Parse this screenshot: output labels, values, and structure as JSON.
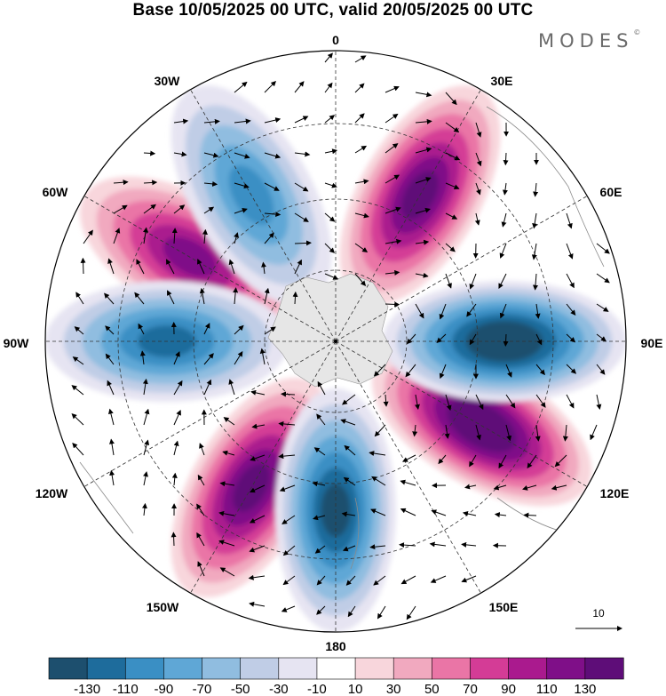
{
  "title": "Base 10/05/2025 00 UTC, valid 20/05/2025 00 UTC",
  "brand": "MODES",
  "brand_mark": "©",
  "lon_labels": [
    {
      "id": "lon-0",
      "text": "0"
    },
    {
      "id": "lon-30e",
      "text": "30E"
    },
    {
      "id": "lon-60e",
      "text": "60E"
    },
    {
      "id": "lon-90e",
      "text": "90E"
    },
    {
      "id": "lon-120e",
      "text": "120E"
    },
    {
      "id": "lon-150e",
      "text": "150E"
    },
    {
      "id": "lon-180",
      "text": "180"
    },
    {
      "id": "lon-150w",
      "text": "150W"
    },
    {
      "id": "lon-120w",
      "text": "120W"
    },
    {
      "id": "lon-90w",
      "text": "90W"
    },
    {
      "id": "lon-60w",
      "text": "60W"
    },
    {
      "id": "lon-30w",
      "text": "30W"
    }
  ],
  "vector_reference": "10",
  "colorbar": {
    "colors": [
      "#1d4f6e",
      "#1e6c9c",
      "#3a8fc4",
      "#5fa7d6",
      "#90bde0",
      "#c0cde6",
      "#e6e4f2",
      "#ffffff",
      "#f8d6dc",
      "#f1a9bf",
      "#ea75a6",
      "#d43c96",
      "#aa1a8e",
      "#7f0f88",
      "#5e0d78"
    ],
    "ticks": [
      "-130",
      "-110",
      "-90",
      "-70",
      "-50",
      "-30",
      "-10",
      "10",
      "30",
      "50",
      "70",
      "90",
      "110",
      "130"
    ]
  },
  "anomaly_lobes": [
    {
      "sign": "positive",
      "peak": 110,
      "sector": "30E"
    },
    {
      "sign": "positive",
      "peak": 90,
      "sector": "60W"
    },
    {
      "sign": "positive",
      "peak": 130,
      "sector": "120E"
    },
    {
      "sign": "positive",
      "peak": 110,
      "sector": "150W"
    },
    {
      "sign": "negative",
      "peak": -130,
      "sector": "90E"
    },
    {
      "sign": "negative",
      "peak": -90,
      "sector": "90W"
    },
    {
      "sign": "negative",
      "peak": -110,
      "sector": "180"
    },
    {
      "sign": "negative",
      "peak": -70,
      "sector": "30W"
    }
  ]
}
